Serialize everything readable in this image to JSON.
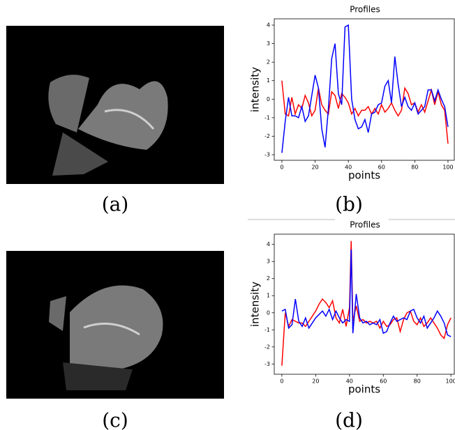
{
  "captions": [
    "(a)",
    "(b)",
    "(c)",
    "(d)"
  ],
  "chart_data": [
    {
      "type": "line",
      "title": "Profiles",
      "x_label": "points",
      "y_label": "intensity",
      "x": [
        0,
        2,
        4,
        6,
        8,
        10,
        12,
        14,
        16,
        18,
        20,
        22,
        24,
        26,
        28,
        30,
        32,
        34,
        36,
        38,
        40,
        42,
        44,
        46,
        48,
        50,
        52,
        54,
        56,
        58,
        60,
        62,
        64,
        66,
        68,
        70,
        72,
        74,
        76,
        78,
        80,
        82,
        84,
        86,
        88,
        90,
        92,
        94,
        96,
        98,
        100
      ],
      "series": [
        {
          "color": "#ff0000",
          "values": [
            1.0,
            -0.8,
            -0.9,
            0.1,
            -0.8,
            -0.3,
            -0.5,
            0.2,
            -0.2,
            -0.9,
            -0.6,
            0.6,
            -0.3,
            -0.6,
            -0.8,
            0.4,
            0.2,
            -0.5,
            0.3,
            0.1,
            -0.2,
            -0.8,
            -0.5,
            -0.9,
            -0.6,
            -0.6,
            -0.4,
            -0.8,
            -0.5,
            -0.8,
            -0.3,
            -0.7,
            -0.5,
            -0.2,
            -0.6,
            -0.9,
            -0.6,
            0.6,
            0.3,
            -0.3,
            -0.2,
            -0.7,
            -0.3,
            -0.7,
            -0.1,
            0.5,
            -0.3,
            0.4,
            -0.3,
            -0.6,
            -2.4
          ]
        },
        {
          "color": "#0000ff",
          "values": [
            -2.9,
            -1.2,
            0.1,
            -0.9,
            -0.9,
            -1.0,
            -0.4,
            -1.2,
            -0.9,
            0.2,
            1.3,
            0.6,
            -1.6,
            -2.6,
            -0.5,
            2.2,
            3.0,
            0.3,
            -0.3,
            3.9,
            4.0,
            0.0,
            -1.1,
            -1.6,
            -1.5,
            -1.1,
            -1.8,
            -0.8,
            -0.7,
            -0.3,
            -0.2,
            0.7,
            1.0,
            -0.2,
            2.3,
            0.8,
            -0.4,
            0.1,
            -0.4,
            -0.6,
            -0.2,
            -0.8,
            -0.6,
            -0.4,
            0.5,
            0.5,
            -0.1,
            0.5,
            0.0,
            -0.4,
            -1.5
          ]
        }
      ],
      "xlim": [
        -4.6,
        103.8
      ],
      "ylim": [
        -3.3,
        4.34
      ],
      "xticks": [
        0,
        20,
        40,
        60,
        80,
        100
      ],
      "yticks": [
        -3,
        -2,
        -1,
        0,
        1,
        2,
        3,
        4
      ]
    },
    {
      "type": "line",
      "title": "Profiles",
      "x_label": "points",
      "y_label": "intensity",
      "x": [
        0,
        2,
        4,
        6,
        8,
        10,
        12,
        14,
        16,
        18,
        20,
        22,
        24,
        26,
        28,
        30,
        32,
        34,
        36,
        38,
        40,
        41,
        42,
        44,
        46,
        48,
        50,
        52,
        54,
        56,
        58,
        60,
        62,
        64,
        66,
        68,
        70,
        72,
        74,
        76,
        78,
        80,
        82,
        84,
        86,
        88,
        90,
        92,
        94,
        96,
        98,
        100
      ],
      "series": [
        {
          "color": "#ff0000",
          "values": [
            -3.1,
            0.0,
            -0.8,
            -0.4,
            -0.5,
            -0.6,
            -0.6,
            -0.8,
            -0.5,
            -0.2,
            0.1,
            0.5,
            0.8,
            0.6,
            0.3,
            0.7,
            -0.3,
            -0.6,
            0.2,
            -0.8,
            0.3,
            4.2,
            -0.5,
            0.4,
            -0.5,
            -0.4,
            -0.6,
            -0.5,
            -0.6,
            -0.5,
            -0.9,
            -0.5,
            -0.8,
            -0.7,
            -0.4,
            -0.3,
            -1.1,
            -0.4,
            0.0,
            0.1,
            -0.5,
            -0.7,
            -0.3,
            -0.8,
            -0.6,
            -0.3,
            -0.6,
            -0.9,
            -1.3,
            -1.5,
            -0.7,
            -0.3
          ]
        },
        {
          "color": "#0000ff",
          "values": [
            0.1,
            0.2,
            -0.9,
            -0.7,
            0.8,
            -0.5,
            -0.8,
            -0.3,
            -0.9,
            -0.6,
            -0.3,
            -0.1,
            0.1,
            -0.2,
            0.2,
            -0.4,
            0.1,
            -0.3,
            -0.6,
            -0.4,
            -0.5,
            3.7,
            -1.2,
            1.1,
            -0.3,
            -0.6,
            -0.5,
            -0.7,
            -0.6,
            -0.7,
            -0.4,
            -1.2,
            -1.1,
            -0.6,
            -0.2,
            -0.5,
            -0.4,
            -0.3,
            -0.4,
            0.1,
            0.2,
            -0.3,
            -0.6,
            -0.2,
            -0.9,
            -0.6,
            -0.3,
            0.1,
            -0.2,
            -0.6,
            -1.3,
            -1.4
          ]
        }
      ],
      "xlim": [
        -4.5,
        102
      ],
      "ylim": [
        -3.6,
        4.6
      ],
      "xticks": [
        0,
        20,
        40,
        60,
        80,
        100
      ],
      "yticks": [
        -3,
        -2,
        -1,
        0,
        1,
        2,
        3,
        4
      ]
    }
  ]
}
